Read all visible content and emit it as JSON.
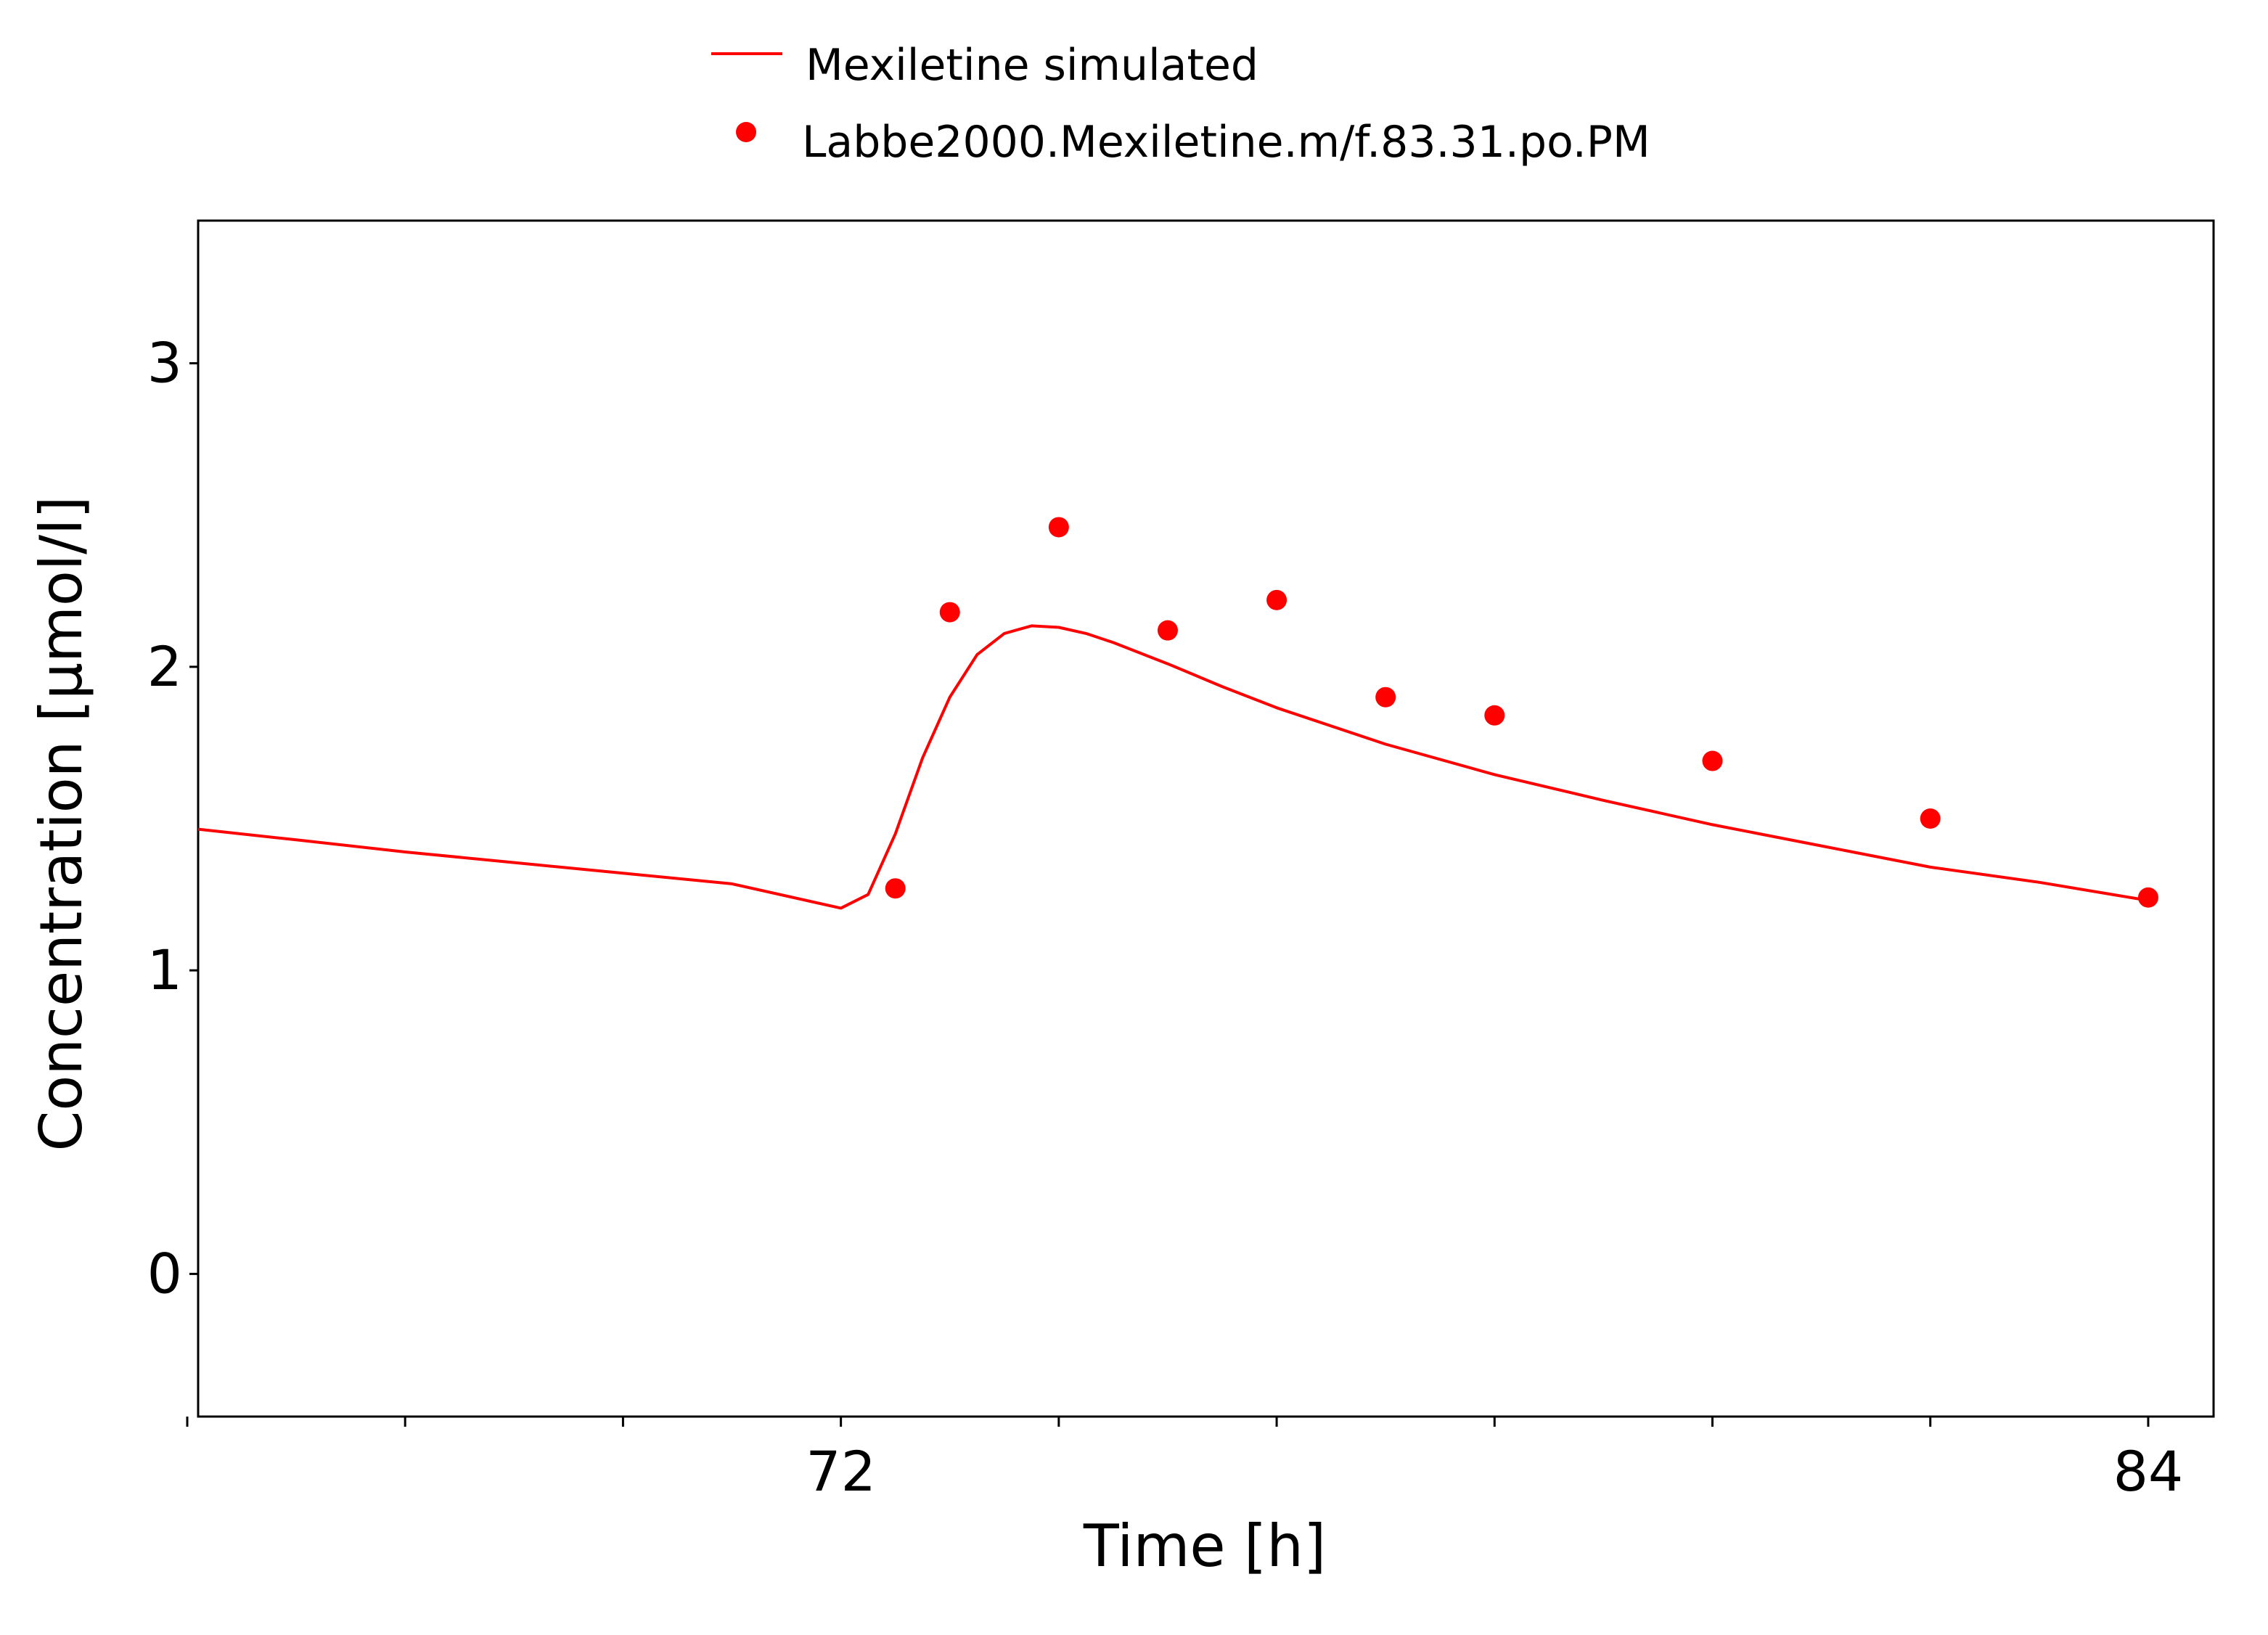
{
  "chart_data": {
    "type": "line",
    "xlabel": "Time [h]",
    "ylabel": "Concentration [µmol/l]",
    "xlim": [
      66.1,
      84.6
    ],
    "ylim": [
      -0.47,
      3.47
    ],
    "x_ticks": [
      72,
      84
    ],
    "x_minor_ticks": [
      66,
      68,
      70,
      74,
      76,
      78,
      80,
      82
    ],
    "y_ticks": [
      0,
      1,
      2,
      3
    ],
    "grid": false,
    "legend_position": "top-center",
    "series": [
      {
        "name": "Mexiletine simulated",
        "style": "line",
        "color": "#ff0000",
        "points": [
          [
            66.1,
            1.465
          ],
          [
            67,
            1.43
          ],
          [
            68,
            1.39
          ],
          [
            69,
            1.355
          ],
          [
            70,
            1.32
          ],
          [
            71,
            1.285
          ],
          [
            72,
            1.205
          ],
          [
            72.25,
            1.25
          ],
          [
            72.5,
            1.45
          ],
          [
            72.75,
            1.7
          ],
          [
            73,
            1.9
          ],
          [
            73.25,
            2.04
          ],
          [
            73.5,
            2.11
          ],
          [
            73.75,
            2.135
          ],
          [
            74,
            2.13
          ],
          [
            74.25,
            2.11
          ],
          [
            74.5,
            2.08
          ],
          [
            75,
            2.01
          ],
          [
            75.5,
            1.935
          ],
          [
            76,
            1.865
          ],
          [
            77,
            1.745
          ],
          [
            78,
            1.645
          ],
          [
            79,
            1.56
          ],
          [
            80,
            1.48
          ],
          [
            81,
            1.41
          ],
          [
            82,
            1.34
          ],
          [
            83,
            1.29
          ],
          [
            84,
            1.23
          ]
        ]
      },
      {
        "name": "Labbe2000.Mexiletine.m/f.83.31.po.PM",
        "style": "scatter",
        "color": "#ff0000",
        "points": [
          [
            72.5,
            1.27
          ],
          [
            73,
            2.18
          ],
          [
            74,
            2.46
          ],
          [
            75,
            2.12
          ],
          [
            76,
            2.22
          ],
          [
            77,
            1.9
          ],
          [
            78,
            1.84
          ],
          [
            80,
            1.69
          ],
          [
            82,
            1.5
          ],
          [
            84,
            1.24
          ]
        ]
      }
    ]
  }
}
